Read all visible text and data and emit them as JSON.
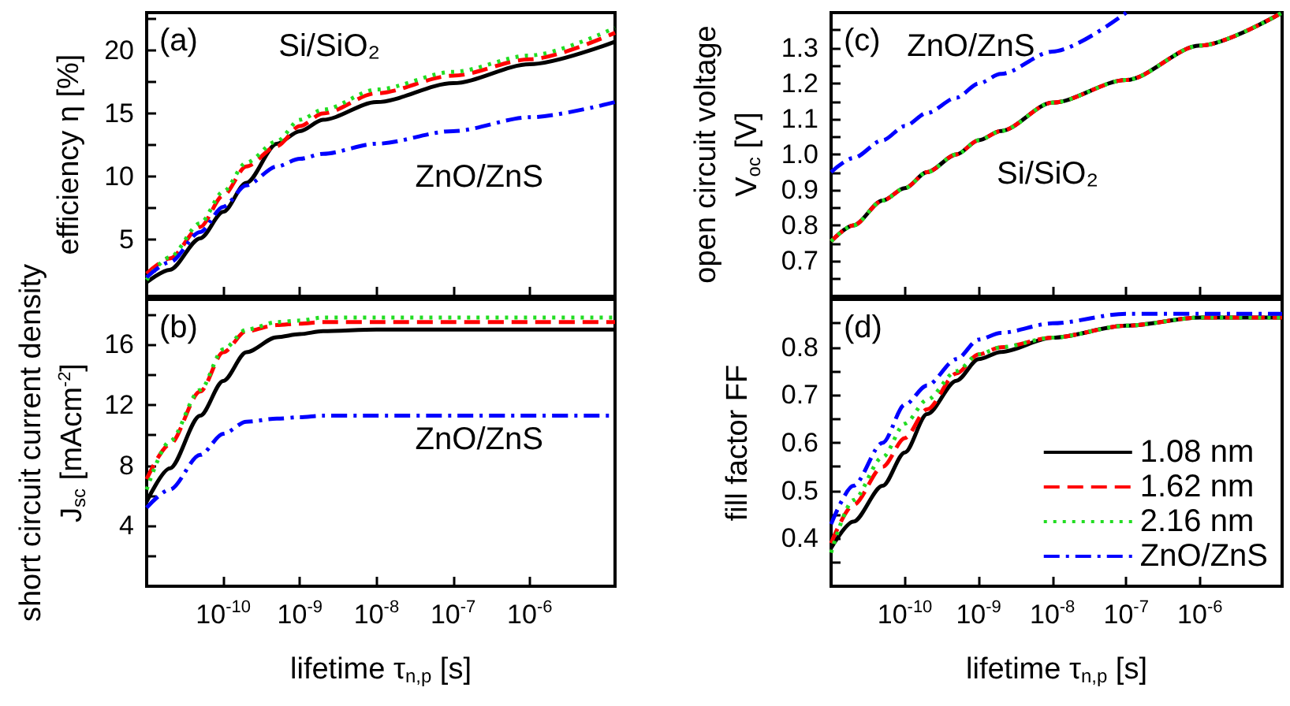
{
  "chart_data": [
    {
      "type": "line",
      "ylabel": "efficiency η [%]",
      "x": [
        1e-11,
        2e-11,
        5e-11,
        1e-10,
        2e-10,
        5e-10,
        1e-09,
        2e-09,
        1e-08,
        1e-07,
        1e-06,
        1.3e-05
      ],
      "log": "x",
      "xlim": [
        1e-11,
        1.3e-05
      ],
      "ylim": [
        0.5,
        23
      ],
      "xticks": [
        {
          "value": 1e-10,
          "label": null
        },
        {
          "value": 1e-09,
          "label": null
        },
        {
          "value": 1e-08,
          "label": null
        },
        {
          "value": 1e-07,
          "label": null
        },
        {
          "value": 1e-06,
          "label": null
        }
      ],
      "yticks": [
        {
          "value": 2.5,
          "label": null
        },
        5,
        {
          "value": 7.5,
          "label": null
        },
        10,
        {
          "value": 12.5,
          "label": null
        },
        15,
        {
          "value": 17.5,
          "label": null
        },
        20,
        {
          "value": 22.5,
          "label": null
        }
      ],
      "tick_labels": "y",
      "legend": false,
      "series": [
        {
          "color": "#000000",
          "line_style": "solid",
          "values": [
            1.6,
            2.6,
            5.1,
            7.2,
            9.5,
            12.6,
            13.6,
            14.5,
            15.9,
            17.4,
            18.9,
            20.7
          ]
        },
        {
          "color": "#ff0000",
          "line_style": "dashed",
          "values": [
            2.3,
            3.5,
            6.0,
            8.5,
            10.8,
            12.4,
            14.0,
            15.0,
            16.6,
            18.0,
            19.3,
            21.4
          ]
        },
        {
          "color": "#22dd22",
          "line_style": "dotted",
          "values": [
            1.8,
            3.6,
            6.3,
            8.8,
            11.1,
            12.8,
            14.5,
            15.3,
            16.9,
            18.3,
            19.6,
            21.8
          ]
        },
        {
          "color": "#0000ff",
          "line_style": "dashdot",
          "values": [
            2.0,
            3.2,
            5.6,
            7.6,
            9.3,
            10.8,
            11.4,
            11.8,
            12.6,
            13.6,
            14.7,
            15.9
          ]
        }
      ],
      "annotations": [
        "(a)",
        "Si/SiO₂",
        "ZnO/ZnS"
      ]
    },
    {
      "type": "line",
      "xlabel": "lifetime τ$_{n,p}$ [s]",
      "ylabel": "short circuit current density\nJ$_{sc}$ [mAcm$^{-2}$]",
      "x": [
        1e-11,
        2e-11,
        5e-11,
        1e-10,
        2e-10,
        5e-10,
        1e-09,
        2e-09,
        1e-08,
        1e-07,
        1e-06,
        1.3e-05
      ],
      "log": "x",
      "xlim": [
        1e-11,
        1.3e-05
      ],
      "ylim": [
        0,
        19
      ],
      "xticks": [
        {
          "value": 1e-10,
          "label": "10$^{-10}$"
        },
        {
          "value": 1e-09,
          "label": "10$^{-9}$"
        },
        {
          "value": 1e-08,
          "label": "10$^{-8}$"
        },
        {
          "value": 1e-07,
          "label": "10$^{-7}$"
        },
        {
          "value": 1e-06,
          "label": "10$^{-6}$"
        }
      ],
      "yticks": [
        {
          "value": 2,
          "label": null
        },
        4,
        {
          "value": 6,
          "label": null
        },
        8,
        {
          "value": 10,
          "label": null
        },
        12,
        {
          "value": 14,
          "label": null
        },
        16,
        {
          "value": 18,
          "label": null
        }
      ],
      "legend": false,
      "series": [
        {
          "color": "#000000",
          "line_style": "solid",
          "values": [
            5.6,
            7.8,
            11.3,
            13.6,
            15.5,
            16.5,
            16.7,
            16.9,
            17.0,
            17.0,
            17.0,
            17.0
          ]
        },
        {
          "color": "#ff0000",
          "line_style": "dashed",
          "values": [
            7.1,
            9.4,
            12.9,
            15.5,
            16.9,
            17.3,
            17.4,
            17.5,
            17.5,
            17.5,
            17.5,
            17.5
          ]
        },
        {
          "color": "#22dd22",
          "line_style": "dotted",
          "values": [
            6.4,
            9.6,
            13.0,
            15.7,
            17.0,
            17.5,
            17.6,
            17.8,
            17.8,
            17.8,
            17.8,
            17.8
          ]
        },
        {
          "color": "#0000ff",
          "line_style": "dashdot",
          "values": [
            5.2,
            6.4,
            8.7,
            10.1,
            10.9,
            11.1,
            11.2,
            11.3,
            11.3,
            11.3,
            11.3,
            11.3
          ]
        }
      ],
      "annotations": [
        "(b)",
        "ZnO/ZnS"
      ]
    },
    {
      "type": "line",
      "ylabel": "open circuit voltage\nV$_{oc}$ [V]",
      "x": [
        1e-11,
        2e-11,
        5e-11,
        1e-10,
        2e-10,
        5e-10,
        1e-09,
        2e-09,
        1e-08,
        1e-07,
        1e-06,
        1.3e-05
      ],
      "log": "x",
      "xlim": [
        1e-11,
        1.3e-05
      ],
      "ylim": [
        0.6,
        1.4
      ],
      "xticks": [
        {
          "value": 1e-10,
          "label": null
        },
        {
          "value": 1e-09,
          "label": null
        },
        {
          "value": 1e-08,
          "label": null
        },
        {
          "value": 1e-07,
          "label": null
        },
        {
          "value": 1e-06,
          "label": null
        }
      ],
      "yticks": [
        {
          "value": 0.65,
          "label": null
        },
        0.7,
        {
          "value": 0.75,
          "label": null
        },
        0.8,
        {
          "value": 0.85,
          "label": null
        },
        0.9,
        {
          "value": 0.95,
          "label": null
        },
        {
          "value": 1,
          "label": "1.0"
        },
        {
          "value": 1.05,
          "label": null
        },
        1.1,
        {
          "value": 1.15,
          "label": null
        },
        1.2,
        {
          "value": 1.25,
          "label": null
        },
        1.3,
        {
          "value": 1.35,
          "label": null
        }
      ],
      "tick_labels": "y",
      "legend": false,
      "series": [
        {
          "color": "#000000",
          "line_style": "solid",
          "values": [
            0.755,
            0.8,
            0.87,
            0.905,
            0.95,
            1.0,
            1.04,
            1.066,
            1.146,
            1.21,
            1.307,
            1.4
          ]
        },
        {
          "color": "#ff0000",
          "line_style": "dashed",
          "values": [
            0.755,
            0.8,
            0.87,
            0.905,
            0.95,
            1.0,
            1.04,
            1.066,
            1.146,
            1.21,
            1.307,
            1.4
          ]
        },
        {
          "color": "#22dd22",
          "line_style": "dotted",
          "values": [
            0.755,
            0.8,
            0.87,
            0.905,
            0.95,
            1.0,
            1.04,
            1.066,
            1.146,
            1.21,
            1.307,
            1.4
          ]
        },
        {
          "color": "#0000ff",
          "line_style": "dashdot",
          "values": [
            0.95,
            0.99,
            1.04,
            1.08,
            1.117,
            1.16,
            1.2,
            1.227,
            1.29,
            1.4,
            null,
            null
          ]
        }
      ],
      "annotations": [
        "(c)",
        "ZnO/ZnS",
        "Si/SiO₂"
      ]
    },
    {
      "type": "line",
      "xlabel": "lifetime τ$_{n,p}$ [s]",
      "ylabel": "fill factor FF",
      "x": [
        1e-11,
        2e-11,
        5e-11,
        1e-10,
        2e-10,
        5e-10,
        1e-09,
        2e-09,
        1e-08,
        1e-07,
        1e-06,
        1.3e-05
      ],
      "log": "x",
      "xlim": [
        1e-11,
        1.3e-05
      ],
      "ylim": [
        0.3,
        0.9
      ],
      "xticks": [
        {
          "value": 1e-10,
          "label": "10$^{-10}$"
        },
        {
          "value": 1e-09,
          "label": "10$^{-9}$"
        },
        {
          "value": 1e-08,
          "label": "10$^{-8}$"
        },
        {
          "value": 1e-07,
          "label": "10$^{-7}$"
        },
        {
          "value": 1e-06,
          "label": "10$^{-6}$"
        }
      ],
      "yticks": [
        {
          "value": 0.35,
          "label": null
        },
        0.4,
        {
          "value": 0.45,
          "label": null
        },
        0.5,
        {
          "value": 0.55,
          "label": null
        },
        0.6,
        {
          "value": 0.65,
          "label": null
        },
        0.7,
        {
          "value": 0.75,
          "label": null
        },
        0.8,
        {
          "value": 0.85,
          "label": null
        }
      ],
      "legend": "bottom right",
      "series": [
        {
          "name": "1.08 nm",
          "color": "#000000",
          "line_style": "solid",
          "values": [
            0.38,
            0.435,
            0.51,
            0.58,
            0.66,
            0.73,
            0.775,
            0.79,
            0.82,
            0.845,
            0.862,
            0.862
          ]
        },
        {
          "name": "1.62 nm",
          "color": "#ff0000",
          "line_style": "dashed",
          "values": [
            0.39,
            0.47,
            0.55,
            0.61,
            0.67,
            0.745,
            0.785,
            0.8,
            0.82,
            0.845,
            0.862,
            0.862
          ]
        },
        {
          "name": "2.16 nm",
          "color": "#22dd22",
          "line_style": "dotted",
          "values": [
            0.37,
            0.48,
            0.57,
            0.64,
            0.69,
            0.75,
            0.785,
            0.8,
            0.82,
            0.845,
            0.862,
            0.862
          ]
        },
        {
          "name": "ZnO/ZnS",
          "color": "#0000ff",
          "line_style": "dashdot",
          "values": [
            0.43,
            0.51,
            0.6,
            0.68,
            0.72,
            0.775,
            0.816,
            0.83,
            0.85,
            0.87,
            0.87,
            0.87
          ]
        }
      ],
      "annotations": [
        "(d)"
      ]
    }
  ]
}
